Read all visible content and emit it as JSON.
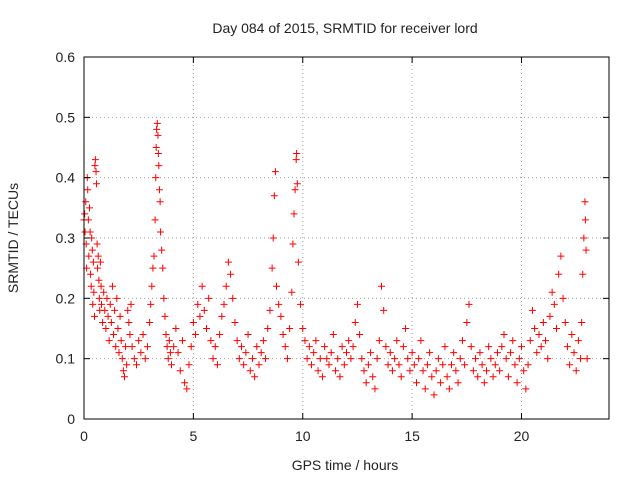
{
  "chart_data": {
    "type": "scatter",
    "title": "Day 084 of 2015, SRMTID for receiver lord",
    "xlabel": "GPS time / hours",
    "ylabel": "SRMTID / TECUs",
    "xlim": [
      0,
      24
    ],
    "ylim": [
      0,
      0.6
    ],
    "xticks": [
      0,
      5,
      10,
      15,
      20
    ],
    "yticks": [
      0,
      0.1,
      0.2,
      0.3,
      0.4,
      0.5,
      0.6
    ],
    "xtick_labels": [
      "0",
      "5",
      "10",
      "15",
      "20"
    ],
    "ytick_labels": [
      "0",
      "0.1",
      "0.2",
      "0.3",
      "0.4",
      "0.5",
      "0.6"
    ],
    "grid": true,
    "marker": "+",
    "color": "#ff0000",
    "series": [
      {
        "name": "SRMTID",
        "points": [
          [
            0.0,
            0.33
          ],
          [
            0.03,
            0.34
          ],
          [
            0.05,
            0.31
          ],
          [
            0.08,
            0.36
          ],
          [
            0.1,
            0.29
          ],
          [
            0.12,
            0.25
          ],
          [
            0.15,
            0.4
          ],
          [
            0.17,
            0.38
          ],
          [
            0.2,
            0.33
          ],
          [
            0.22,
            0.27
          ],
          [
            0.25,
            0.35
          ],
          [
            0.28,
            0.31
          ],
          [
            0.3,
            0.24
          ],
          [
            0.33,
            0.22
          ],
          [
            0.35,
            0.3
          ],
          [
            0.38,
            0.28
          ],
          [
            0.4,
            0.19
          ],
          [
            0.43,
            0.26
          ],
          [
            0.45,
            0.21
          ],
          [
            0.48,
            0.17
          ],
          [
            0.5,
            0.42
          ],
          [
            0.52,
            0.43
          ],
          [
            0.55,
            0.41
          ],
          [
            0.57,
            0.39
          ],
          [
            0.6,
            0.29
          ],
          [
            0.62,
            0.25
          ],
          [
            0.65,
            0.27
          ],
          [
            0.68,
            0.23
          ],
          [
            0.7,
            0.2
          ],
          [
            0.72,
            0.18
          ],
          [
            0.75,
            0.26
          ],
          [
            0.78,
            0.22
          ],
          [
            0.8,
            0.19
          ],
          [
            0.85,
            0.16
          ],
          [
            0.9,
            0.21
          ],
          [
            0.95,
            0.18
          ],
          [
            1.0,
            0.15
          ],
          [
            1.05,
            0.2
          ],
          [
            1.1,
            0.17
          ],
          [
            1.15,
            0.13
          ],
          [
            1.2,
            0.19
          ],
          [
            1.25,
            0.16
          ],
          [
            1.3,
            0.22
          ],
          [
            1.35,
            0.14
          ],
          [
            1.4,
            0.18
          ],
          [
            1.45,
            0.12
          ],
          [
            1.5,
            0.2
          ],
          [
            1.55,
            0.15
          ],
          [
            1.6,
            0.11
          ],
          [
            1.65,
            0.17
          ],
          [
            1.7,
            0.13
          ],
          [
            1.75,
            0.1
          ],
          [
            1.8,
            0.08
          ],
          [
            1.85,
            0.07
          ],
          [
            1.9,
            0.12
          ],
          [
            1.95,
            0.09
          ],
          [
            2.0,
            0.18
          ],
          [
            2.05,
            0.16
          ],
          [
            2.1,
            0.14
          ],
          [
            2.15,
            0.19
          ],
          [
            2.2,
            0.12
          ],
          [
            2.3,
            0.1
          ],
          [
            2.4,
            0.09
          ],
          [
            2.5,
            0.13
          ],
          [
            2.6,
            0.11
          ],
          [
            2.7,
            0.14
          ],
          [
            2.8,
            0.1
          ],
          [
            2.9,
            0.12
          ],
          [
            3.0,
            0.16
          ],
          [
            3.05,
            0.19
          ],
          [
            3.1,
            0.22
          ],
          [
            3.15,
            0.25
          ],
          [
            3.2,
            0.27
          ],
          [
            3.25,
            0.33
          ],
          [
            3.28,
            0.4
          ],
          [
            3.3,
            0.45
          ],
          [
            3.32,
            0.48
          ],
          [
            3.35,
            0.49
          ],
          [
            3.38,
            0.47
          ],
          [
            3.4,
            0.44
          ],
          [
            3.42,
            0.42
          ],
          [
            3.45,
            0.38
          ],
          [
            3.48,
            0.36
          ],
          [
            3.5,
            0.31
          ],
          [
            3.55,
            0.28
          ],
          [
            3.6,
            0.25
          ],
          [
            3.65,
            0.2
          ],
          [
            3.7,
            0.17
          ],
          [
            3.75,
            0.14
          ],
          [
            3.8,
            0.12
          ],
          [
            3.85,
            0.1
          ],
          [
            3.9,
            0.13
          ],
          [
            3.95,
            0.11
          ],
          [
            4.0,
            0.09
          ],
          [
            4.1,
            0.12
          ],
          [
            4.2,
            0.15
          ],
          [
            4.3,
            0.11
          ],
          [
            4.4,
            0.08
          ],
          [
            4.5,
            0.13
          ],
          [
            4.6,
            0.06
          ],
          [
            4.7,
            0.05
          ],
          [
            4.8,
            0.09
          ],
          [
            4.9,
            0.12
          ],
          [
            5.0,
            0.16
          ],
          [
            5.1,
            0.14
          ],
          [
            5.2,
            0.19
          ],
          [
            5.3,
            0.17
          ],
          [
            5.4,
            0.22
          ],
          [
            5.5,
            0.18
          ],
          [
            5.6,
            0.15
          ],
          [
            5.7,
            0.2
          ],
          [
            5.8,
            0.13
          ],
          [
            5.9,
            0.1
          ],
          [
            6.0,
            0.12
          ],
          [
            6.1,
            0.09
          ],
          [
            6.2,
            0.14
          ],
          [
            6.3,
            0.17
          ],
          [
            6.4,
            0.19
          ],
          [
            6.5,
            0.22
          ],
          [
            6.6,
            0.26
          ],
          [
            6.7,
            0.24
          ],
          [
            6.8,
            0.2
          ],
          [
            6.9,
            0.16
          ],
          [
            7.0,
            0.13
          ],
          [
            7.1,
            0.1
          ],
          [
            7.2,
            0.12
          ],
          [
            7.3,
            0.09
          ],
          [
            7.4,
            0.11
          ],
          [
            7.5,
            0.14
          ],
          [
            7.6,
            0.08
          ],
          [
            7.7,
            0.1
          ],
          [
            7.8,
            0.07
          ],
          [
            7.9,
            0.12
          ],
          [
            8.0,
            0.09
          ],
          [
            8.1,
            0.11
          ],
          [
            8.2,
            0.13
          ],
          [
            8.3,
            0.1
          ],
          [
            8.4,
            0.15
          ],
          [
            8.5,
            0.18
          ],
          [
            8.6,
            0.25
          ],
          [
            8.65,
            0.3
          ],
          [
            8.7,
            0.37
          ],
          [
            8.75,
            0.41
          ],
          [
            8.8,
            0.22
          ],
          [
            8.9,
            0.19
          ],
          [
            9.0,
            0.17
          ],
          [
            9.1,
            0.14
          ],
          [
            9.2,
            0.12
          ],
          [
            9.3,
            0.1
          ],
          [
            9.4,
            0.15
          ],
          [
            9.5,
            0.21
          ],
          [
            9.55,
            0.29
          ],
          [
            9.6,
            0.34
          ],
          [
            9.65,
            0.38
          ],
          [
            9.7,
            0.43
          ],
          [
            9.72,
            0.44
          ],
          [
            9.75,
            0.39
          ],
          [
            9.8,
            0.26
          ],
          [
            9.9,
            0.19
          ],
          [
            10.0,
            0.15
          ],
          [
            10.1,
            0.13
          ],
          [
            10.2,
            0.1
          ],
          [
            10.3,
            0.12
          ],
          [
            10.4,
            0.09
          ],
          [
            10.5,
            0.11
          ],
          [
            10.6,
            0.13
          ],
          [
            10.7,
            0.08
          ],
          [
            10.8,
            0.1
          ],
          [
            10.9,
            0.07
          ],
          [
            11.0,
            0.12
          ],
          [
            11.1,
            0.1
          ],
          [
            11.2,
            0.09
          ],
          [
            11.3,
            0.11
          ],
          [
            11.4,
            0.14
          ],
          [
            11.5,
            0.08
          ],
          [
            11.6,
            0.1
          ],
          [
            11.7,
            0.07
          ],
          [
            11.8,
            0.12
          ],
          [
            11.9,
            0.09
          ],
          [
            12.0,
            0.11
          ],
          [
            12.1,
            0.13
          ],
          [
            12.2,
            0.1
          ],
          [
            12.3,
            0.12
          ],
          [
            12.4,
            0.16
          ],
          [
            12.5,
            0.19
          ],
          [
            12.6,
            0.14
          ],
          [
            12.7,
            0.1
          ],
          [
            12.8,
            0.08
          ],
          [
            12.9,
            0.06
          ],
          [
            13.0,
            0.09
          ],
          [
            13.1,
            0.11
          ],
          [
            13.2,
            0.07
          ],
          [
            13.3,
            0.05
          ],
          [
            13.4,
            0.1
          ],
          [
            13.5,
            0.13
          ],
          [
            13.6,
            0.22
          ],
          [
            13.7,
            0.18
          ],
          [
            13.8,
            0.12
          ],
          [
            13.9,
            0.09
          ],
          [
            14.0,
            0.11
          ],
          [
            14.1,
            0.08
          ],
          [
            14.2,
            0.1
          ],
          [
            14.3,
            0.13
          ],
          [
            14.4,
            0.09
          ],
          [
            14.5,
            0.07
          ],
          [
            14.6,
            0.12
          ],
          [
            14.7,
            0.15
          ],
          [
            14.8,
            0.1
          ],
          [
            14.9,
            0.08
          ],
          [
            15.0,
            0.11
          ],
          [
            15.1,
            0.09
          ],
          [
            15.2,
            0.06
          ],
          [
            15.3,
            0.1
          ],
          [
            15.4,
            0.13
          ],
          [
            15.5,
            0.08
          ],
          [
            15.6,
            0.05
          ],
          [
            15.7,
            0.09
          ],
          [
            15.8,
            0.11
          ],
          [
            15.9,
            0.07
          ],
          [
            16.0,
            0.04
          ],
          [
            16.1,
            0.08
          ],
          [
            16.2,
            0.1
          ],
          [
            16.3,
            0.06
          ],
          [
            16.4,
            0.09
          ],
          [
            16.5,
            0.12
          ],
          [
            16.6,
            0.07
          ],
          [
            16.7,
            0.05
          ],
          [
            16.8,
            0.09
          ],
          [
            16.9,
            0.11
          ],
          [
            17.0,
            0.08
          ],
          [
            17.1,
            0.06
          ],
          [
            17.2,
            0.1
          ],
          [
            17.3,
            0.13
          ],
          [
            17.4,
            0.09
          ],
          [
            17.5,
            0.16
          ],
          [
            17.6,
            0.19
          ],
          [
            17.7,
            0.12
          ],
          [
            17.8,
            0.08
          ],
          [
            17.9,
            0.1
          ],
          [
            18.0,
            0.07
          ],
          [
            18.1,
            0.11
          ],
          [
            18.2,
            0.09
          ],
          [
            18.3,
            0.06
          ],
          [
            18.4,
            0.08
          ],
          [
            18.5,
            0.12
          ],
          [
            18.6,
            0.1
          ],
          [
            18.7,
            0.07
          ],
          [
            18.8,
            0.09
          ],
          [
            18.9,
            0.11
          ],
          [
            19.0,
            0.08
          ],
          [
            19.1,
            0.12
          ],
          [
            19.2,
            0.14
          ],
          [
            19.3,
            0.1
          ],
          [
            19.4,
            0.07
          ],
          [
            19.5,
            0.11
          ],
          [
            19.6,
            0.13
          ],
          [
            19.7,
            0.09
          ],
          [
            19.8,
            0.06
          ],
          [
            19.9,
            0.1
          ],
          [
            20.0,
            0.12
          ],
          [
            20.1,
            0.08
          ],
          [
            20.2,
            0.05
          ],
          [
            20.3,
            0.09
          ],
          [
            20.4,
            0.13
          ],
          [
            20.5,
            0.18
          ],
          [
            20.6,
            0.15
          ],
          [
            20.7,
            0.11
          ],
          [
            20.8,
            0.14
          ],
          [
            20.9,
            0.12
          ],
          [
            21.0,
            0.16
          ],
          [
            21.1,
            0.13
          ],
          [
            21.2,
            0.1
          ],
          [
            21.3,
            0.17
          ],
          [
            21.4,
            0.21
          ],
          [
            21.5,
            0.19
          ],
          [
            21.6,
            0.15
          ],
          [
            21.7,
            0.24
          ],
          [
            21.8,
            0.27
          ],
          [
            21.9,
            0.2
          ],
          [
            22.0,
            0.16
          ],
          [
            22.1,
            0.12
          ],
          [
            22.2,
            0.09
          ],
          [
            22.3,
            0.14
          ],
          [
            22.4,
            0.11
          ],
          [
            22.5,
            0.08
          ],
          [
            22.6,
            0.13
          ],
          [
            22.7,
            0.1
          ],
          [
            22.75,
            0.16
          ],
          [
            22.8,
            0.24
          ],
          [
            22.85,
            0.3
          ],
          [
            22.9,
            0.36
          ],
          [
            22.92,
            0.33
          ],
          [
            22.95,
            0.28
          ],
          [
            23.0,
            0.1
          ]
        ]
      }
    ]
  }
}
